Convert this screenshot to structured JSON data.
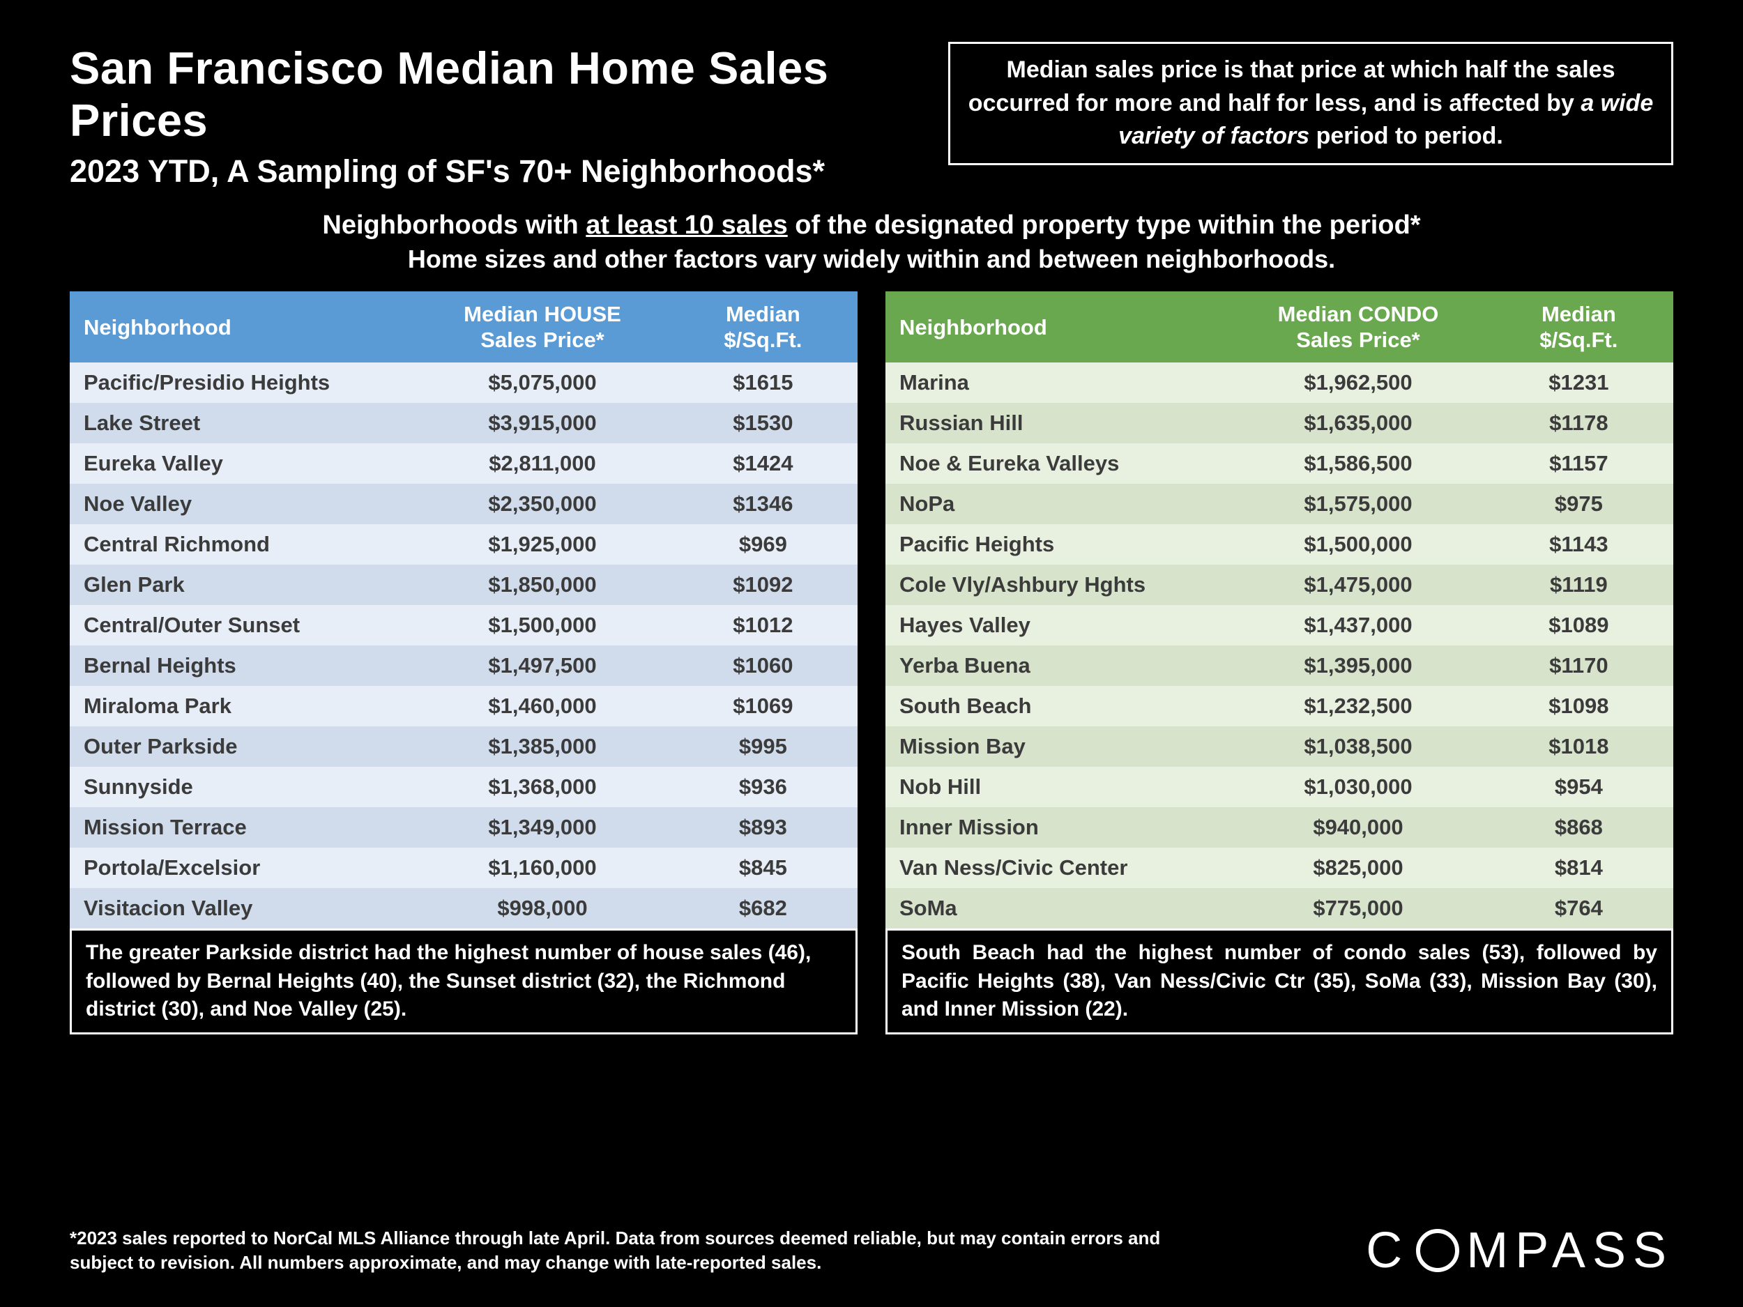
{
  "header": {
    "title": "San Francisco Median Home Sales Prices",
    "subtitle": "2023 YTD, A Sampling of SF's 70+ Neighborhoods*",
    "definition_pre": "Median sales price is that price at which half the sales occurred for more and half for less, and is affected by ",
    "definition_italic": "a wide variety of factors",
    "definition_post": " period to period."
  },
  "mid": {
    "line1_pre": "Neighborhoods with ",
    "line1_underline": "at least 10 sales",
    "line1_post": " of the designated property type within the period*",
    "line2": "Home sizes and other factors vary widely within and between neighborhoods."
  },
  "house_table": {
    "header_bg": "#5a9bd5",
    "row_odd_bg": "#e8eef7",
    "row_even_bg": "#d0dcec",
    "columns": [
      "Neighborhood",
      "Median HOUSE Sales Price*",
      "Median $/Sq.Ft."
    ],
    "rows": [
      [
        "Pacific/Presidio Heights",
        "$5,075,000",
        "$1615"
      ],
      [
        "Lake Street",
        "$3,915,000",
        "$1530"
      ],
      [
        "Eureka Valley",
        "$2,811,000",
        "$1424"
      ],
      [
        "Noe Valley",
        "$2,350,000",
        "$1346"
      ],
      [
        "Central Richmond",
        "$1,925,000",
        "$969"
      ],
      [
        "Glen Park",
        "$1,850,000",
        "$1092"
      ],
      [
        "Central/Outer Sunset",
        "$1,500,000",
        "$1012"
      ],
      [
        "Bernal Heights",
        "$1,497,500",
        "$1060"
      ],
      [
        "Miraloma Park",
        "$1,460,000",
        "$1069"
      ],
      [
        "Outer Parkside",
        "$1,385,000",
        "$995"
      ],
      [
        "Sunnyside",
        "$1,368,000",
        "$936"
      ],
      [
        "Mission Terrace",
        "$1,349,000",
        "$893"
      ],
      [
        "Portola/Excelsior",
        "$1,160,000",
        "$845"
      ],
      [
        "Visitacion Valley",
        "$998,000",
        "$682"
      ]
    ],
    "caption": "The greater Parkside district had the highest number of house sales (46), followed by Bernal Heights (40), the Sunset district (32), the Richmond district (30), and Noe Valley (25)."
  },
  "condo_table": {
    "header_bg": "#6aa84f",
    "row_odd_bg": "#e8f0e0",
    "row_even_bg": "#d7e4cb",
    "columns": [
      "Neighborhood",
      "Median CONDO Sales Price*",
      "Median $/Sq.Ft."
    ],
    "rows": [
      [
        "Marina",
        "$1,962,500",
        "$1231"
      ],
      [
        "Russian Hill",
        "$1,635,000",
        "$1178"
      ],
      [
        "Noe & Eureka Valleys",
        "$1,586,500",
        "$1157"
      ],
      [
        "NoPa",
        "$1,575,000",
        "$975"
      ],
      [
        "Pacific Heights",
        "$1,500,000",
        "$1143"
      ],
      [
        "Cole Vly/Ashbury Hghts",
        "$1,475,000",
        "$1119"
      ],
      [
        "Hayes Valley",
        "$1,437,000",
        "$1089"
      ],
      [
        "Yerba Buena",
        "$1,395,000",
        "$1170"
      ],
      [
        "South Beach",
        "$1,232,500",
        "$1098"
      ],
      [
        "Mission Bay",
        "$1,038,500",
        "$1018"
      ],
      [
        "Nob Hill",
        "$1,030,000",
        "$954"
      ],
      [
        "Inner Mission",
        "$940,000",
        "$868"
      ],
      [
        "Van Ness/Civic Center",
        "$825,000",
        "$814"
      ],
      [
        "SoMa",
        "$775,000",
        "$764"
      ]
    ],
    "caption": "South Beach had the highest number of condo sales (53), followed by Pacific Heights (38), Van Ness/Civic Ctr (35), SoMa (33), Mission Bay (30), and Inner Mission (22)."
  },
  "footer": {
    "disclaimer": "*2023 sales reported to NorCal MLS Alliance through late April. Data from sources deemed reliable, but may contain errors and subject to revision. All numbers approximate, and may change with late-reported sales.",
    "logo_text_1": "C",
    "logo_text_2": "MPASS"
  },
  "style": {
    "background": "#000000",
    "text_color": "#ffffff",
    "table_text_color": "#3b3b3b",
    "font_family": "Segoe UI, Helvetica Neue, Arial, sans-serif"
  }
}
